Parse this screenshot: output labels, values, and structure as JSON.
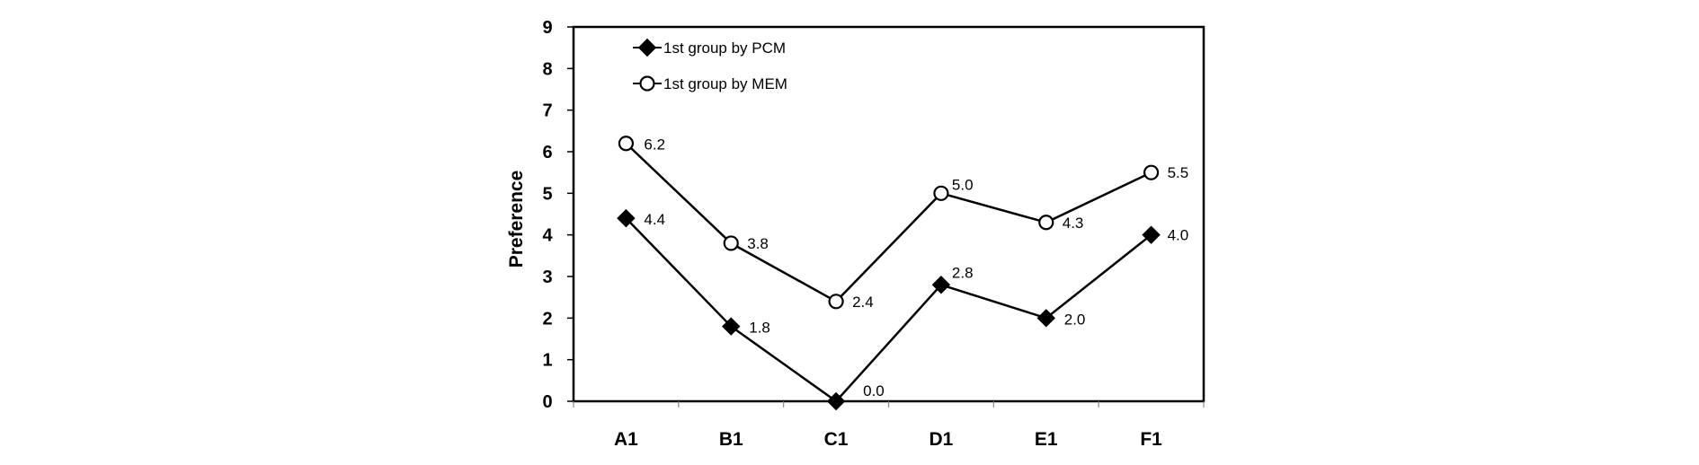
{
  "chart_data": {
    "type": "line",
    "categories": [
      "A1",
      "B1",
      "C1",
      "D1",
      "E1",
      "F1"
    ],
    "series": [
      {
        "name": "1st group by PCM",
        "marker": "diamond-filled",
        "values": [
          4.4,
          1.8,
          0.0,
          2.8,
          2.0,
          4.0
        ],
        "labels": [
          "4.4",
          "1.8",
          "0.0",
          "2.8",
          "2.0",
          "4.0"
        ]
      },
      {
        "name": "1st group by MEM",
        "marker": "circle-open",
        "values": [
          6.2,
          3.8,
          2.4,
          5.0,
          4.3,
          5.5
        ],
        "labels": [
          "6.2",
          "3.8",
          "2.4",
          "5.0",
          "4.3",
          "5.5"
        ]
      }
    ],
    "ylabel": "Preference",
    "xlabel": "",
    "ylim": [
      0,
      9
    ],
    "yticks": [
      "0",
      "1",
      "2",
      "3",
      "4",
      "5",
      "6",
      "7",
      "8",
      "9"
    ],
    "grid": false,
    "legend_position": "top-left",
    "colors": {
      "line": "#000000",
      "marker_fill_pcm": "#000000",
      "marker_fill_mem": "#ffffff"
    }
  }
}
